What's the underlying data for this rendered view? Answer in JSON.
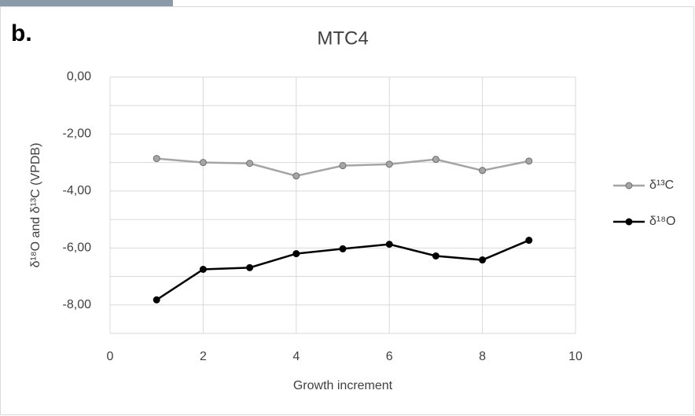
{
  "panel_label": "b.",
  "chart_data": {
    "type": "line",
    "title": "MTC4",
    "x_label": "Growth increment",
    "y_label": "δ¹⁸O and δ¹³C (VPDB)",
    "x": [
      1,
      2,
      3,
      4,
      5,
      6,
      7,
      8,
      9
    ],
    "series": [
      {
        "name": "δ¹³C",
        "color": "#a5a5a5",
        "values": [
          -2.86,
          -3.0,
          -3.03,
          -3.47,
          -3.11,
          -3.06,
          -2.89,
          -3.28,
          -2.95
        ]
      },
      {
        "name": "δ¹⁸O",
        "color": "#000000",
        "values": [
          -7.82,
          -6.75,
          -6.69,
          -6.2,
          -6.03,
          -5.87,
          -6.28,
          -6.42,
          -5.73
        ]
      }
    ],
    "xlim": [
      0,
      10
    ],
    "xticks": [
      0,
      2,
      4,
      6,
      8,
      10
    ],
    "ylim": [
      -9,
      0
    ],
    "yticks": [
      {
        "value": 0,
        "label": "0,00"
      },
      {
        "value": -2,
        "label": "-2,00"
      },
      {
        "value": -4,
        "label": "-4,00"
      },
      {
        "value": -6,
        "label": "-6,00"
      },
      {
        "value": -8,
        "label": "-8,00"
      }
    ],
    "y_minor_grid": [
      -1,
      -3,
      -5,
      -7,
      -9
    ],
    "grid": true,
    "legend": "right"
  }
}
